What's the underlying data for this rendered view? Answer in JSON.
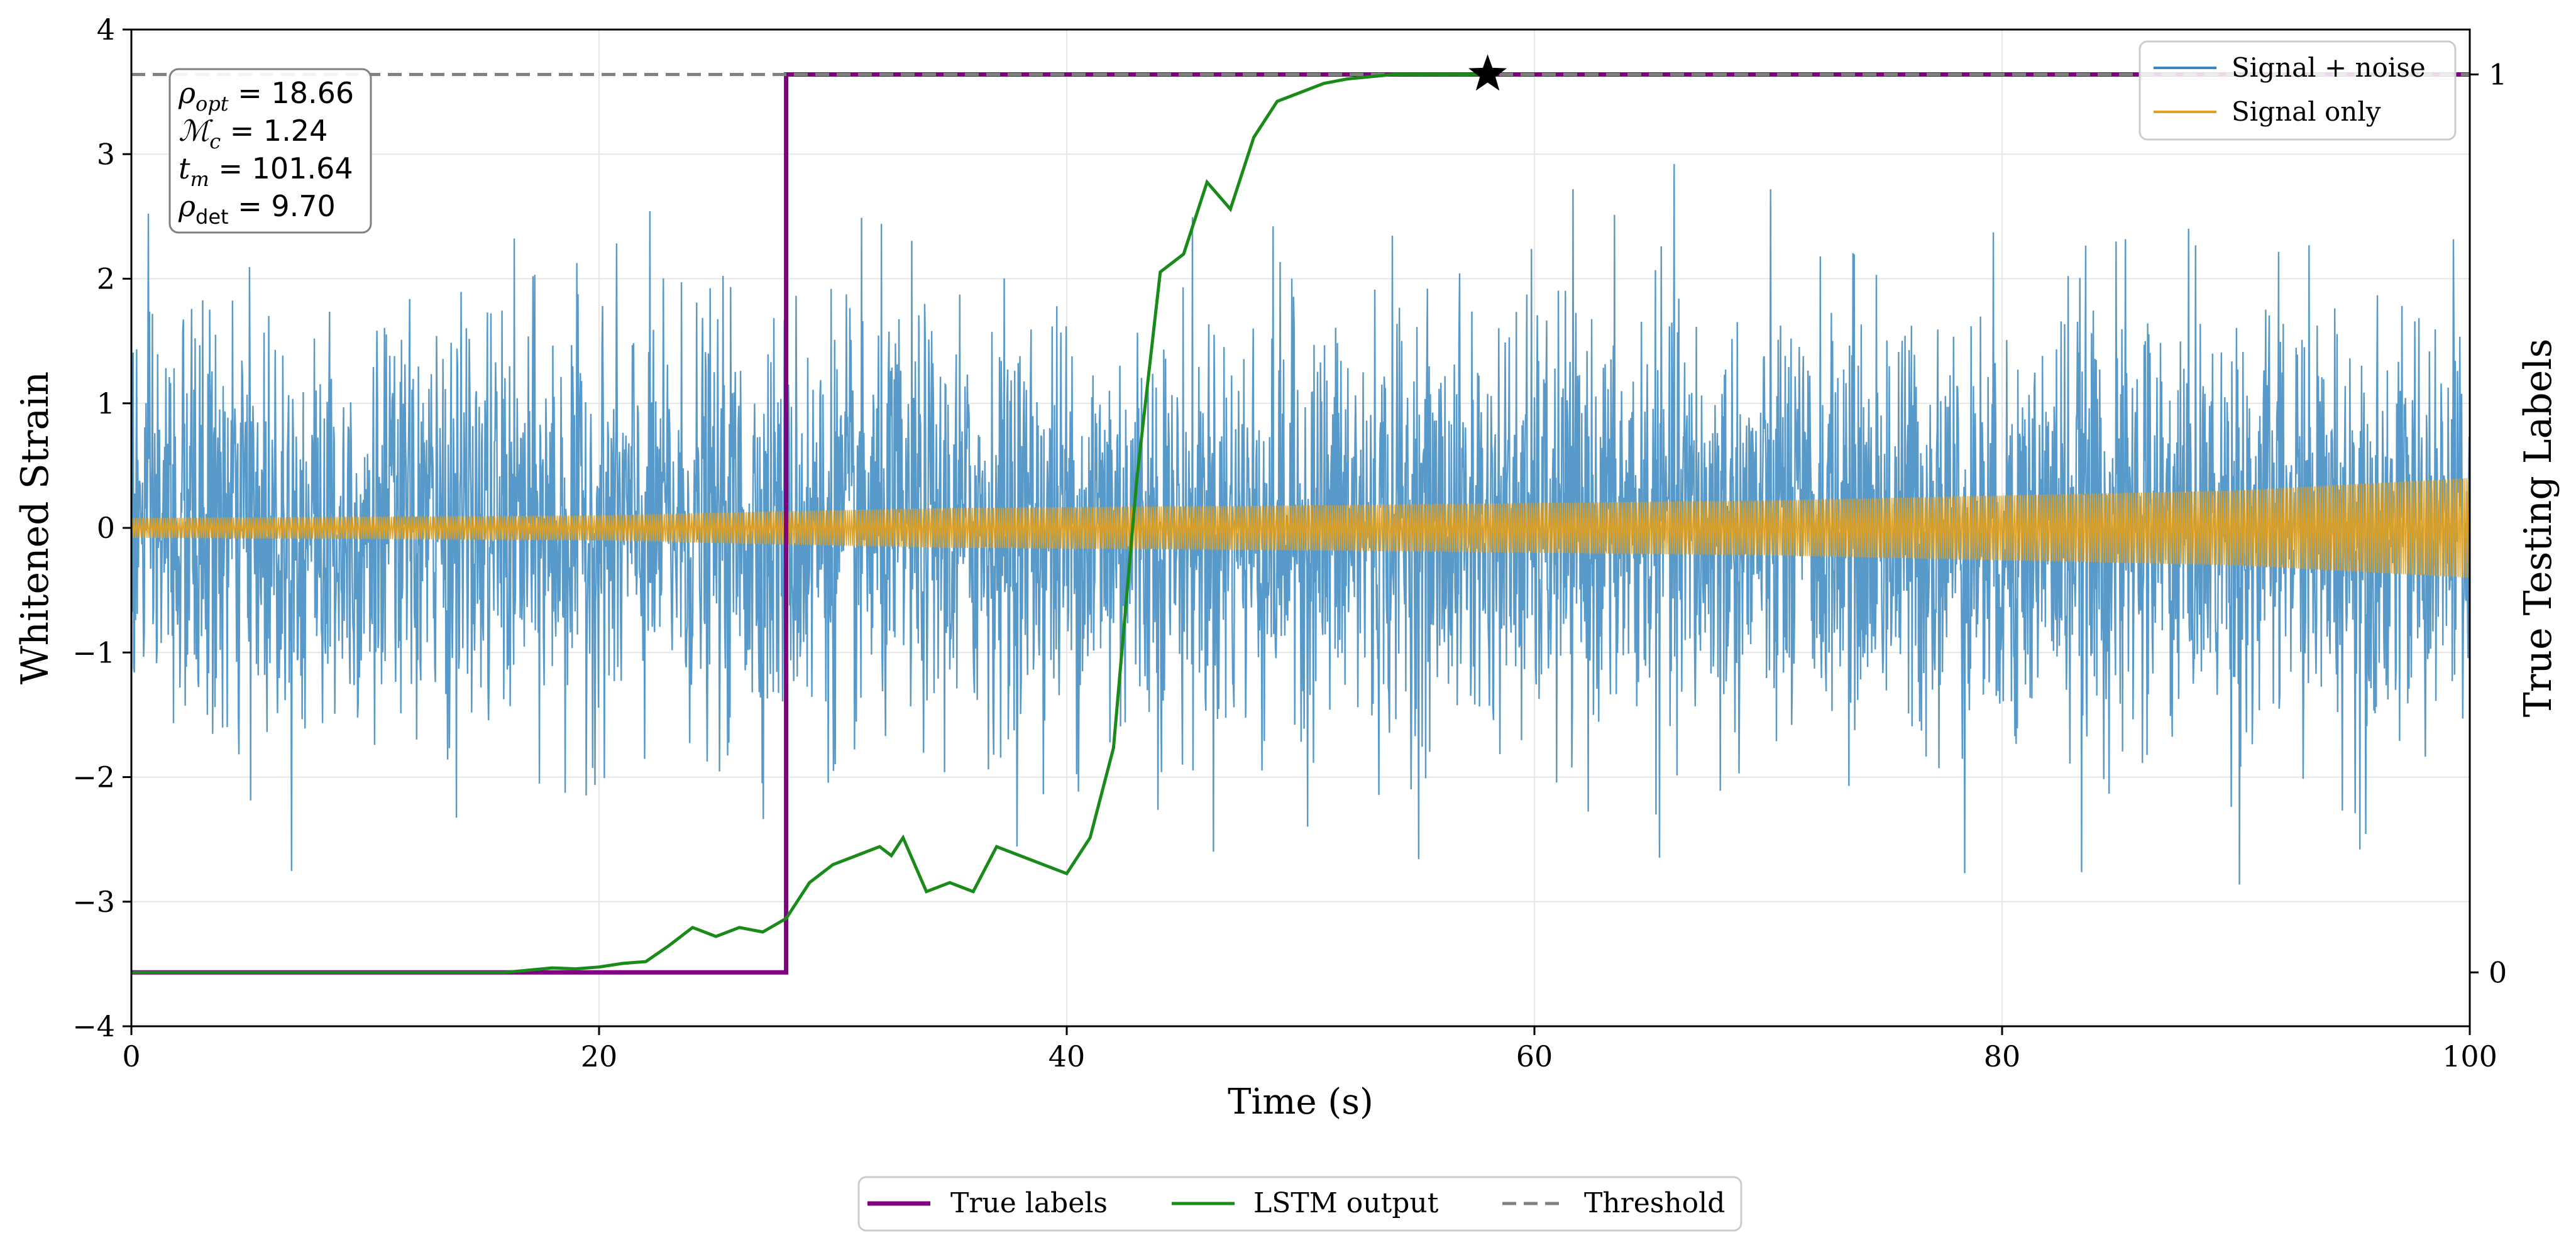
{
  "chart_data": {
    "type": "line",
    "title": "",
    "xlabel": "Time (s)",
    "ylabel": "Whitened Strain",
    "ylabel_right": "True Testing Labels",
    "xlim": [
      0,
      100
    ],
    "ylim": [
      -4,
      4
    ],
    "ylim_right": [
      -0.06,
      1.05
    ],
    "x_ticks": [
      0,
      20,
      40,
      60,
      80,
      100
    ],
    "x_tick_labels": [
      "0",
      "20",
      "40",
      "60",
      "80",
      "100"
    ],
    "y_ticks": [
      -4,
      -3,
      -2,
      -1,
      0,
      1,
      2,
      3,
      4
    ],
    "y_tick_labels": [
      "−4",
      "−3",
      "−2",
      "−1",
      "0",
      "1",
      "2",
      "3",
      "4"
    ],
    "y_right_ticks": [
      0,
      1
    ],
    "y_right_tick_labels": [
      "0",
      "1"
    ],
    "grid": true,
    "colors": {
      "noise": "#3a87c0",
      "signal": "#e0a020",
      "true_labels": "#800080",
      "lstm": "#1a8a1a",
      "threshold": "#808080",
      "star": "#000000"
    },
    "params": {
      "rho_opt": "18.66",
      "chirp_mass": "1.24",
      "t_m": "101.64",
      "rho_det": "9.70"
    },
    "series": [
      {
        "name": "Signal + noise",
        "axis": "left",
        "noise_sigma": 0.82,
        "points_per_second": 40
      },
      {
        "name": "Signal only",
        "axis": "left",
        "envelope": [
          [
            0,
            0.08
          ],
          [
            10,
            0.09
          ],
          [
            20,
            0.1
          ],
          [
            27,
            0.13
          ],
          [
            35,
            0.16
          ],
          [
            50,
            0.18
          ],
          [
            60,
            0.2
          ],
          [
            70,
            0.22
          ],
          [
            80,
            0.26
          ],
          [
            90,
            0.3
          ],
          [
            100,
            0.4
          ]
        ]
      },
      {
        "name": "True labels",
        "axis": "right",
        "x": [
          0,
          28,
          28,
          100
        ],
        "values": [
          0,
          0,
          1,
          1
        ]
      },
      {
        "name": "LSTM output",
        "axis": "right",
        "x": [
          0,
          16,
          18,
          19,
          20,
          21,
          22,
          23,
          24,
          25,
          26,
          27,
          28,
          29,
          30,
          31,
          32,
          32.5,
          33,
          34,
          35,
          36,
          37,
          38,
          39,
          40,
          41,
          42,
          43,
          44,
          45,
          46,
          47,
          48,
          49,
          50,
          51,
          52,
          54,
          56,
          58
        ],
        "values": [
          0,
          0,
          0.005,
          0.004,
          0.006,
          0.01,
          0.012,
          0.03,
          0.05,
          0.04,
          0.05,
          0.045,
          0.06,
          0.1,
          0.12,
          0.13,
          0.14,
          0.13,
          0.15,
          0.09,
          0.1,
          0.09,
          0.14,
          0.13,
          0.12,
          0.11,
          0.15,
          0.25,
          0.55,
          0.78,
          0.8,
          0.88,
          0.85,
          0.93,
          0.97,
          0.98,
          0.99,
          0.995,
          1.0,
          1.0,
          1.0
        ]
      },
      {
        "name": "Threshold",
        "axis": "right",
        "value": 1.0
      },
      {
        "name": "Detection",
        "axis": "right",
        "x": [
          58
        ],
        "values": [
          1.0
        ]
      }
    ],
    "legend_upper": [
      "Signal + noise",
      "Signal only"
    ],
    "legend_lower": [
      "True labels",
      "LSTM output",
      "Threshold"
    ],
    "legend_upper_position": "top-right",
    "legend_lower_position": "bottom-center"
  }
}
